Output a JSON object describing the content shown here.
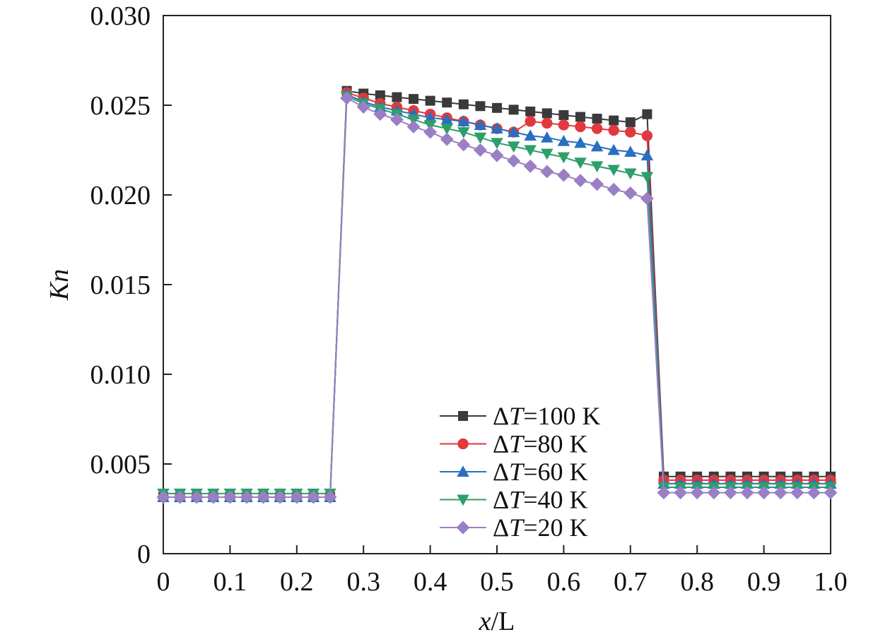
{
  "chart_data": {
    "type": "line",
    "xlabel": {
      "italic": "x",
      "rest": "/L"
    },
    "ylabel": "Kn",
    "xlim": [
      0,
      1.0
    ],
    "ylim": [
      0,
      0.03
    ],
    "x_ticks": [
      {
        "value": 0,
        "label": "0"
      },
      {
        "value": 0.1,
        "label": "0.1"
      },
      {
        "value": 0.2,
        "label": "0.2"
      },
      {
        "value": 0.3,
        "label": "0.3"
      },
      {
        "value": 0.4,
        "label": "0.4"
      },
      {
        "value": 0.5,
        "label": "0.5"
      },
      {
        "value": 0.6,
        "label": "0.6"
      },
      {
        "value": 0.7,
        "label": "0.7"
      },
      {
        "value": 0.8,
        "label": "0.8"
      },
      {
        "value": 0.9,
        "label": "0.9"
      },
      {
        "value": 1.0,
        "label": "1.0"
      }
    ],
    "y_ticks": [
      {
        "value": 0,
        "label": "0"
      },
      {
        "value": 0.005,
        "label": "0.005"
      },
      {
        "value": 0.01,
        "label": "0.010"
      },
      {
        "value": 0.015,
        "label": "0.015"
      },
      {
        "value": 0.02,
        "label": "0.020"
      },
      {
        "value": 0.025,
        "label": "0.025"
      },
      {
        "value": 0.03,
        "label": "0.030"
      }
    ],
    "grid": false,
    "legend_position": "bottom-center",
    "x": [
      0,
      0.025,
      0.05,
      0.075,
      0.1,
      0.125,
      0.15,
      0.175,
      0.2,
      0.225,
      0.25,
      0.275,
      0.3,
      0.325,
      0.35,
      0.375,
      0.4,
      0.425,
      0.45,
      0.475,
      0.5,
      0.525,
      0.55,
      0.575,
      0.6,
      0.625,
      0.65,
      0.675,
      0.7,
      0.725,
      0.75,
      0.775,
      0.8,
      0.825,
      0.85,
      0.875,
      0.9,
      0.925,
      0.95,
      0.975,
      1.0
    ],
    "series": [
      {
        "name": "ΔT=100 K",
        "legend": {
          "prefix": "Δ",
          "italic": "T",
          "suffix": "=100 K"
        },
        "color": "#3a3a3a",
        "marker": "square",
        "values": [
          0.00315,
          0.00315,
          0.00315,
          0.00315,
          0.00315,
          0.00315,
          0.00315,
          0.00315,
          0.00315,
          0.00315,
          0.00315,
          0.0258,
          0.02565,
          0.02555,
          0.02545,
          0.02535,
          0.02525,
          0.02515,
          0.02505,
          0.02495,
          0.02485,
          0.02475,
          0.02465,
          0.02455,
          0.02445,
          0.02435,
          0.02425,
          0.02415,
          0.02405,
          0.0245,
          0.0043,
          0.0043,
          0.0043,
          0.0043,
          0.0043,
          0.0043,
          0.0043,
          0.0043,
          0.0043,
          0.0043,
          0.0043
        ]
      },
      {
        "name": "ΔT=80 K",
        "legend": {
          "prefix": "Δ",
          "italic": "T",
          "suffix": "=80 K"
        },
        "color": "#e0393e",
        "marker": "circle",
        "values": [
          0.00315,
          0.00315,
          0.00315,
          0.00315,
          0.00315,
          0.00315,
          0.00315,
          0.00315,
          0.00315,
          0.00315,
          0.00315,
          0.0257,
          0.0254,
          0.0251,
          0.0249,
          0.0247,
          0.0245,
          0.0243,
          0.0241,
          0.0239,
          0.0237,
          0.0235,
          0.0241,
          0.024,
          0.0239,
          0.0238,
          0.0237,
          0.0236,
          0.0235,
          0.0233,
          0.0041,
          0.0041,
          0.0041,
          0.0041,
          0.0041,
          0.0041,
          0.0041,
          0.0041,
          0.0041,
          0.0041,
          0.0041
        ]
      },
      {
        "name": "ΔT=60 K",
        "legend": {
          "prefix": "Δ",
          "italic": "T",
          "suffix": "=60 K"
        },
        "color": "#2a6fbf",
        "marker": "triangle-up",
        "values": [
          0.00315,
          0.00315,
          0.00315,
          0.00315,
          0.00315,
          0.00315,
          0.00315,
          0.00315,
          0.00315,
          0.00315,
          0.00315,
          0.0256,
          0.0252,
          0.0249,
          0.0247,
          0.0245,
          0.0243,
          0.0242,
          0.0241,
          0.0239,
          0.0237,
          0.0235,
          0.0233,
          0.0232,
          0.023,
          0.0229,
          0.0227,
          0.0225,
          0.0224,
          0.0222,
          0.0039,
          0.0039,
          0.0039,
          0.0039,
          0.0039,
          0.0039,
          0.0039,
          0.0039,
          0.0039,
          0.0039,
          0.0039
        ]
      },
      {
        "name": "ΔT=40 K",
        "legend": {
          "prefix": "Δ",
          "italic": "T",
          "suffix": "=40 K"
        },
        "color": "#2e9e6a",
        "marker": "triangle-down",
        "values": [
          0.00335,
          0.00335,
          0.00335,
          0.00335,
          0.00335,
          0.00335,
          0.00335,
          0.00335,
          0.00335,
          0.00335,
          0.00335,
          0.0255,
          0.0251,
          0.0248,
          0.0245,
          0.0242,
          0.0239,
          0.0237,
          0.0235,
          0.0232,
          0.0229,
          0.0227,
          0.0225,
          0.0223,
          0.0221,
          0.0218,
          0.0216,
          0.0214,
          0.0212,
          0.021,
          0.0037,
          0.0037,
          0.0037,
          0.0037,
          0.0037,
          0.0037,
          0.0037,
          0.0037,
          0.0037,
          0.0037,
          0.0037
        ]
      },
      {
        "name": "ΔT=20 K",
        "legend": {
          "prefix": "Δ",
          "italic": "T",
          "suffix": "=20 K"
        },
        "color": "#9a7fc4",
        "marker": "diamond",
        "values": [
          0.00315,
          0.00315,
          0.00315,
          0.00315,
          0.00315,
          0.00315,
          0.00315,
          0.00315,
          0.00315,
          0.00315,
          0.00315,
          0.0254,
          0.0249,
          0.0245,
          0.0242,
          0.0238,
          0.0235,
          0.0231,
          0.0228,
          0.0225,
          0.0222,
          0.0219,
          0.0216,
          0.0213,
          0.0211,
          0.0208,
          0.0206,
          0.0203,
          0.0201,
          0.0198,
          0.0034,
          0.0034,
          0.0034,
          0.0034,
          0.0034,
          0.0034,
          0.0034,
          0.0034,
          0.0034,
          0.0034,
          0.0034
        ]
      }
    ]
  }
}
